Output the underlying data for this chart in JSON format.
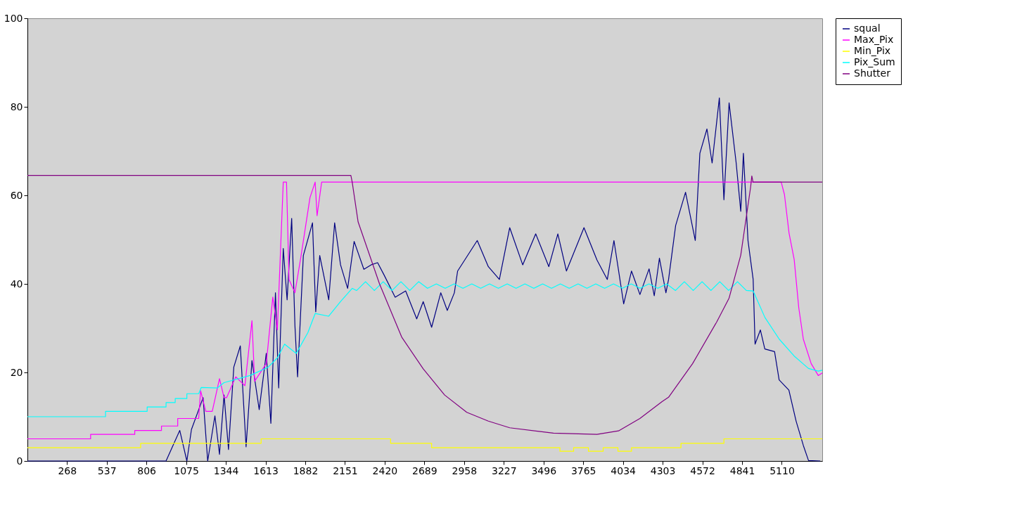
{
  "chart_data": {
    "type": "line",
    "xlim": [
      0,
      5384
    ],
    "xticks": [
      268,
      537,
      806,
      1075,
      1344,
      1613,
      1882,
      2151,
      2420,
      2689,
      2958,
      3227,
      3496,
      3765,
      4034,
      4303,
      4572,
      4841,
      5110
    ],
    "ylim": [
      0,
      100
    ],
    "yticks": [
      0,
      20,
      40,
      60,
      80,
      100
    ],
    "grid": false,
    "legend": "right",
    "line_style": "solid",
    "marker": "none",
    "series": [
      {
        "name": "squal",
        "color": "#000080",
        "x": [
          0,
          939,
          1032,
          1080,
          1111,
          1190,
          1221,
          1270,
          1301,
          1332,
          1362,
          1398,
          1442,
          1481,
          1521,
          1570,
          1618,
          1649,
          1680,
          1702,
          1733,
          1759,
          1790,
          1812,
          1830,
          1869,
          1931,
          1953,
          1980,
          2041,
          2081,
          2121,
          2169,
          2213,
          2279,
          2328,
          2372,
          2416,
          2491,
          2562,
          2637,
          2681,
          2738,
          2800,
          2844,
          2892,
          2914,
          3047,
          3122,
          3197,
          3267,
          3355,
          3443,
          3532,
          3593,
          3651,
          3770,
          3858,
          3928,
          3973,
          4039,
          4092,
          4149,
          4211,
          4246,
          4281,
          4325,
          4343,
          4391,
          4458,
          4524,
          4555,
          4603,
          4638,
          4687,
          4718,
          4753,
          4801,
          4832,
          4850,
          4881,
          4916,
          4929,
          4965,
          4995,
          5061,
          5092,
          5158,
          5207,
          5256,
          5291,
          5370
        ],
        "values": [
          0,
          0,
          6.9,
          0,
          7.1,
          14.3,
          0,
          10.2,
          1.5,
          14.9,
          2.6,
          21.2,
          26,
          3.2,
          22.7,
          11.6,
          24.3,
          8.5,
          38,
          16.5,
          48,
          36.4,
          54.8,
          30.6,
          19,
          46.4,
          53.8,
          33.7,
          46.4,
          36.4,
          53.8,
          44.3,
          39,
          49.6,
          43.3,
          44.3,
          44.8,
          42,
          37,
          38.4,
          32.1,
          36,
          30.2,
          38,
          34,
          38,
          42.9,
          49.8,
          43.9,
          41,
          52.7,
          44.3,
          51.3,
          43.9,
          51.3,
          42.9,
          52.7,
          45.4,
          41,
          49.8,
          35.5,
          42.9,
          37.6,
          43.4,
          37.3,
          45.8,
          38,
          41,
          53.2,
          60.7,
          49.8,
          69.5,
          75,
          67.3,
          82,
          59,
          80.9,
          67.3,
          56.4,
          69.5,
          49.8,
          41,
          26.4,
          29.6,
          25.3,
          24.7,
          18.3,
          16,
          9,
          3.5,
          0.1,
          0
        ]
      },
      {
        "name": "Max_Pix",
        "color": "#ff00ff",
        "x": [
          0,
          428,
          428,
          727,
          727,
          908,
          908,
          1018,
          1018,
          1160,
          1173,
          1208,
          1252,
          1301,
          1332,
          1349,
          1411,
          1473,
          1521,
          1539,
          1618,
          1662,
          1693,
          1733,
          1755,
          1772,
          1812,
          1852,
          1914,
          1949,
          1962,
          1993,
          5106,
          5128,
          5159,
          5194,
          5225,
          5256,
          5309,
          5357,
          5384
        ],
        "values": [
          5,
          5,
          6,
          6,
          6.9,
          6.9,
          7.9,
          7.9,
          9.6,
          9.6,
          15.9,
          11.2,
          11.2,
          18.6,
          14.3,
          14.3,
          19,
          17,
          31.7,
          18,
          22,
          37,
          29.6,
          63,
          63,
          41,
          38,
          46,
          59.5,
          63,
          55.4,
          63,
          63,
          60.2,
          51.5,
          45.5,
          34.6,
          27.5,
          22,
          19.3,
          19.9
        ]
      },
      {
        "name": "Min_Pix",
        "color": "#ffff00",
        "x": [
          0,
          767,
          767,
          1583,
          1583,
          2460,
          2460,
          2738,
          2738,
          3607,
          3607,
          3700,
          3700,
          3800,
          3800,
          3900,
          3900,
          4000,
          4000,
          4092,
          4092,
          4427,
          4427,
          4718,
          4718,
          5384
        ],
        "values": [
          3,
          3,
          4,
          4,
          5,
          5,
          4,
          4,
          3,
          3,
          2.2,
          2.2,
          3,
          3,
          2.2,
          2.2,
          3,
          3,
          2.2,
          2.2,
          3,
          3,
          4,
          4,
          5,
          5
        ]
      },
      {
        "name": "Pix_Sum",
        "color": "#00ffff",
        "x": [
          0,
          529,
          529,
          811,
          811,
          939,
          939,
          1001,
          1001,
          1080,
          1080,
          1160,
          1177,
          1287,
          1332,
          1508,
          1631,
          1693,
          1742,
          1821,
          1900,
          1949,
          2041,
          2121,
          2200,
          2230,
          2290,
          2350,
          2410,
          2470,
          2530,
          2590,
          2650,
          2710,
          2770,
          2830,
          2890,
          2950,
          3010,
          3070,
          3130,
          3190,
          3250,
          3310,
          3370,
          3430,
          3490,
          3550,
          3610,
          3670,
          3730,
          3790,
          3850,
          3910,
          3970,
          4030,
          4090,
          4150,
          4210,
          4270,
          4330,
          4390,
          4450,
          4510,
          4570,
          4630,
          4690,
          4750,
          4810,
          4870,
          4916,
          4996,
          5093,
          5194,
          5291,
          5357,
          5384
        ],
        "values": [
          10,
          10,
          11.2,
          11.2,
          12.2,
          12.2,
          13.2,
          13.2,
          14.1,
          14.1,
          15.2,
          15.2,
          16.6,
          16.5,
          17.7,
          19.3,
          21.2,
          23.3,
          26.4,
          24.3,
          29,
          33.3,
          32.7,
          36,
          39,
          38.5,
          40.5,
          38.5,
          40.5,
          38.5,
          40.5,
          38.5,
          40.5,
          39,
          40,
          39,
          40,
          39,
          40,
          39,
          40,
          39,
          40,
          39,
          40,
          39,
          40,
          39,
          40,
          39,
          40,
          39,
          40,
          39,
          40,
          39,
          40,
          39,
          40,
          39,
          40,
          38.5,
          40.5,
          38.5,
          40.5,
          38.5,
          40.5,
          38.5,
          40.5,
          38.5,
          38.4,
          32.4,
          27.5,
          23.7,
          20.9,
          20.3,
          20.5
        ]
      },
      {
        "name": "Shutter",
        "color": "#800080",
        "x": [
          0,
          2191,
          2200,
          2240,
          2385,
          2535,
          2681,
          2826,
          2976,
          3122,
          3267,
          3563,
          3858,
          4004,
          4149,
          4299,
          4343,
          4506,
          4669,
          4753,
          4832,
          4899,
          4907,
          4915,
          5384
        ],
        "values": [
          64.5,
          64.5,
          63,
          54,
          40,
          28,
          20.8,
          14.9,
          11,
          9,
          7.5,
          6.3,
          6,
          6.8,
          9.6,
          13.4,
          14.4,
          22,
          31.4,
          36.8,
          46.5,
          61.9,
          64.4,
          63,
          63
        ]
      }
    ]
  }
}
